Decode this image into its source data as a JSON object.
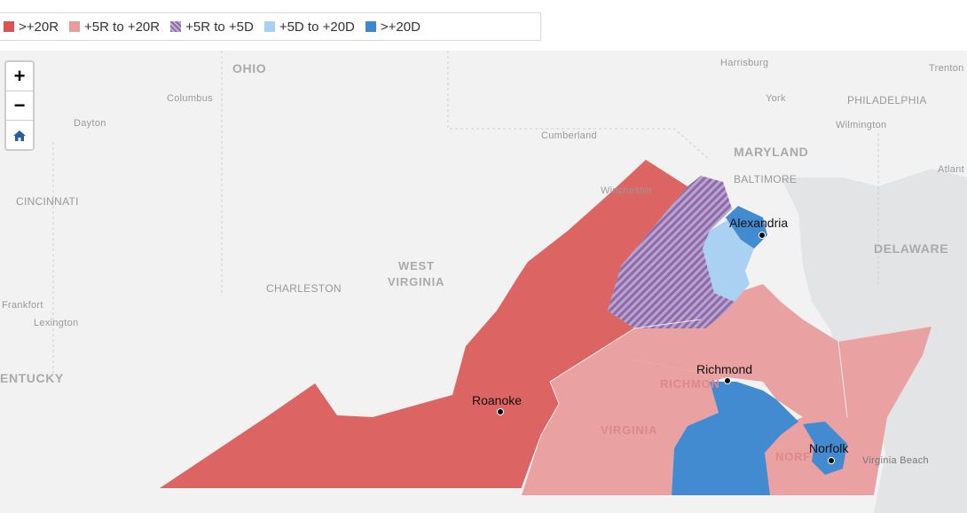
{
  "legend": {
    "items": [
      {
        "label": ">+20R",
        "color": "#d9534f"
      },
      {
        "label": "+5R to +20R",
        "color": "#e89c9c"
      },
      {
        "label": "+5R to +5D",
        "color": "#8e6aa8"
      },
      {
        "label": "+5D to +20D",
        "color": "#a9cff2"
      },
      {
        "label": ">+20D",
        "color": "#3f87cc"
      }
    ]
  },
  "zoom": {
    "in_label": "+",
    "out_label": "−",
    "home_icon": "home-icon"
  },
  "base_labels": {
    "ohio": "OHIO",
    "columbus": "Columbus",
    "dayton": "Dayton",
    "cincinnati": "CINCINNATI",
    "frankfort": "Frankfort",
    "lexington": "Lexington",
    "kentucky": "ENTUCKY",
    "charleston": "CHARLESTON",
    "west_virginia_1": "WEST",
    "west_virginia_2": "VIRGINIA",
    "harrisburg": "Harrisburg",
    "york": "York",
    "philadelphia": "PHILADELPHIA",
    "trenton": "Trenton",
    "wilmington": "Wilmington",
    "cumberland": "Cumberland",
    "maryland": "MARYLAND",
    "baltimore": "BALTIMORE",
    "winchester": "Winchester",
    "delaware": "DELAWARE",
    "atlantic": "Atlant",
    "virginia": "VIRGINIA",
    "richmond_base": "RICHMON",
    "norfolk_base": "NORF",
    "virginia_beach": "Virginia Beach"
  },
  "cities": {
    "alexandria": "Alexandria",
    "richmond": "Richmond",
    "roanoke": "Roanoke",
    "norfolk": "Norfolk"
  }
}
